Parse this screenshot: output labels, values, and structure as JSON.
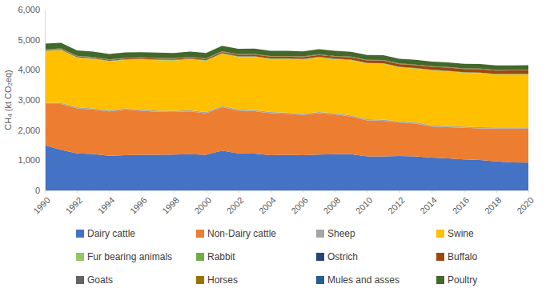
{
  "chart_data": {
    "type": "area",
    "stacked": true,
    "grid": false,
    "legend": "bottom",
    "y_label": "CH₄ (kt CO₂eq)",
    "x": [
      1990,
      1991,
      1992,
      1993,
      1994,
      1995,
      1996,
      1997,
      1998,
      1999,
      2000,
      2001,
      2002,
      2003,
      2004,
      2005,
      2006,
      2007,
      2008,
      2009,
      2010,
      2011,
      2012,
      2013,
      2014,
      2015,
      2016,
      2017,
      2018,
      2019,
      2020
    ],
    "xlim": [
      1990,
      2020
    ],
    "xticks": [
      1990,
      1992,
      1994,
      1996,
      1998,
      2000,
      2002,
      2004,
      2006,
      2008,
      2010,
      2012,
      2014,
      2016,
      2018,
      2020
    ],
    "ylim": [
      0,
      6000
    ],
    "yticks": [
      0,
      {
        "value": 1000,
        "label": "1,000"
      },
      {
        "value": 2000,
        "label": "2,000"
      },
      {
        "value": 3000,
        "label": "3,000"
      },
      {
        "value": 4000,
        "label": "4,000"
      },
      {
        "value": 5000,
        "label": "5,000"
      },
      {
        "value": 6000,
        "label": "6,000"
      }
    ],
    "series": [
      {
        "name": "Dairy cattle",
        "color": "#4472c4",
        "values": [
          1500,
          1350,
          1230,
          1210,
          1150,
          1170,
          1180,
          1180,
          1190,
          1200,
          1180,
          1320,
          1230,
          1220,
          1170,
          1180,
          1170,
          1190,
          1200,
          1200,
          1130,
          1130,
          1140,
          1130,
          1090,
          1060,
          1030,
          1010,
          960,
          930,
          920
        ]
      },
      {
        "name": "Non-Dairy cattle",
        "color": "#ed7d31",
        "values": [
          1370,
          1520,
          1490,
          1470,
          1470,
          1510,
          1460,
          1430,
          1410,
          1420,
          1380,
          1440,
          1420,
          1410,
          1390,
          1360,
          1330,
          1370,
          1320,
          1250,
          1190,
          1180,
          1110,
          1090,
          1030,
          1040,
          1050,
          1050,
          1090,
          1120,
          1130
        ]
      },
      {
        "name": "Sheep",
        "color": "#a5a5a5",
        "values": [
          40,
          40,
          40,
          40,
          40,
          40,
          40,
          40,
          40,
          40,
          40,
          40,
          40,
          40,
          40,
          40,
          40,
          40,
          40,
          40,
          40,
          40,
          40,
          40,
          40,
          40,
          40,
          40,
          40,
          40,
          40
        ]
      },
      {
        "name": "Swine",
        "color": "#ffc000",
        "values": [
          1710,
          1740,
          1640,
          1640,
          1620,
          1610,
          1660,
          1670,
          1670,
          1690,
          1700,
          1730,
          1740,
          1760,
          1760,
          1780,
          1800,
          1810,
          1790,
          1830,
          1850,
          1850,
          1790,
          1780,
          1820,
          1810,
          1780,
          1790,
          1750,
          1750,
          1750
        ]
      },
      {
        "name": "Fur bearing animals",
        "color": "#8fc865",
        "values": [
          8,
          8,
          8,
          8,
          8,
          8,
          8,
          8,
          8,
          8,
          8,
          8,
          8,
          8,
          8,
          8,
          8,
          8,
          8,
          8,
          8,
          8,
          8,
          8,
          8,
          8,
          8,
          8,
          8,
          8,
          8
        ]
      },
      {
        "name": "Rabbit",
        "color": "#70ad47",
        "values": [
          12,
          12,
          12,
          12,
          12,
          12,
          12,
          12,
          12,
          12,
          12,
          12,
          12,
          12,
          12,
          12,
          12,
          12,
          12,
          12,
          12,
          12,
          12,
          12,
          12,
          12,
          12,
          12,
          12,
          12,
          12
        ]
      },
      {
        "name": "Ostrich",
        "color": "#264478",
        "values": [
          1,
          1,
          1,
          1,
          1,
          1,
          1,
          1,
          1,
          1,
          1,
          1,
          1,
          1,
          1,
          1,
          1,
          1,
          1,
          1,
          1,
          1,
          1,
          1,
          1,
          1,
          1,
          1,
          1,
          1,
          1
        ]
      },
      {
        "name": "Buffalo",
        "color": "#9e480e",
        "values": [
          20,
          22,
          24,
          26,
          28,
          30,
          32,
          34,
          36,
          38,
          40,
          45,
          50,
          55,
          58,
          60,
          62,
          65,
          70,
          75,
          80,
          85,
          90,
          95,
          100,
          105,
          110,
          112,
          115,
          118,
          120
        ]
      },
      {
        "name": "Goats",
        "color": "#636363",
        "values": [
          6,
          6,
          6,
          6,
          6,
          6,
          6,
          6,
          6,
          6,
          6,
          6,
          6,
          6,
          6,
          6,
          6,
          6,
          6,
          6,
          6,
          6,
          6,
          6,
          6,
          6,
          6,
          6,
          6,
          6,
          6
        ]
      },
      {
        "name": "Horses",
        "color": "#997300",
        "values": [
          12,
          12,
          12,
          12,
          12,
          12,
          12,
          12,
          12,
          12,
          12,
          12,
          12,
          12,
          12,
          12,
          12,
          12,
          12,
          12,
          12,
          12,
          12,
          12,
          12,
          12,
          12,
          12,
          12,
          12,
          12
        ]
      },
      {
        "name": "Mules and asses",
        "color": "#255e91",
        "values": [
          3,
          3,
          3,
          3,
          3,
          3,
          3,
          3,
          3,
          3,
          3,
          3,
          3,
          3,
          3,
          3,
          3,
          3,
          3,
          3,
          3,
          3,
          3,
          3,
          3,
          3,
          3,
          3,
          3,
          3,
          3
        ]
      },
      {
        "name": "Poultry",
        "color": "#43682b",
        "values": [
          190,
          185,
          180,
          180,
          175,
          175,
          175,
          175,
          175,
          178,
          180,
          185,
          180,
          178,
          175,
          172,
          170,
          170,
          168,
          165,
          162,
          160,
          158,
          156,
          155,
          153,
          152,
          150,
          150,
          150,
          150
        ]
      }
    ]
  }
}
